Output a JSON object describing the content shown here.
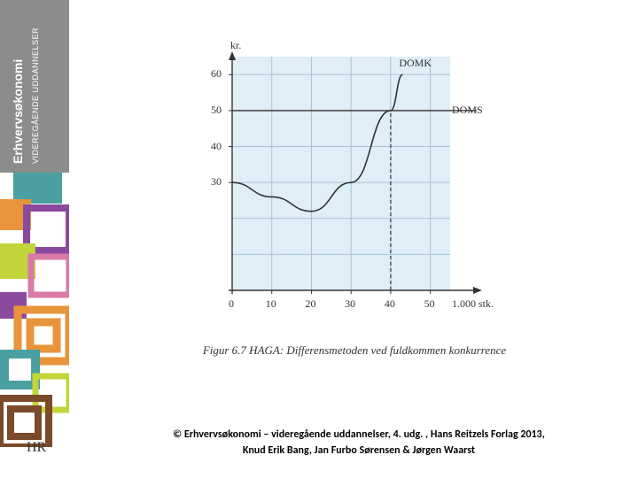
{
  "sidebar": {
    "title": "Erhvervsøkonomi",
    "subtitle": "VIDEREGÅENDE UDDANNELSER",
    "logo": "HR",
    "bg_color": "#8c8c8c",
    "text_color": "#ffffff",
    "deco_colors": {
      "purple": "#8c4a9e",
      "teal": "#4aa0a0",
      "orange": "#e8943a",
      "lime": "#c2d43a",
      "pink": "#d97aa8",
      "brown": "#7a4a2a",
      "white": "#ffffff"
    }
  },
  "chart": {
    "type": "line",
    "plot_bg": "#dfeef7",
    "grid_color": "#a8c4d4",
    "axis_color": "#333333",
    "line_color": "#333333",
    "dashed_color": "#333333",
    "y_label": "kr.",
    "x_label": "1.000 stk.",
    "xlim": [
      0,
      55
    ],
    "ylim": [
      0,
      65
    ],
    "x_ticks": [
      0,
      10,
      20,
      30,
      40,
      50
    ],
    "y_ticks": [
      30,
      40,
      50,
      60
    ],
    "curve_label_top": "DOMK",
    "curve_label_right": "DOMS",
    "line_points": [
      {
        "x": 0,
        "y": 30
      },
      {
        "x": 10,
        "y": 26
      },
      {
        "x": 20,
        "y": 22
      },
      {
        "x": 30,
        "y": 30
      },
      {
        "x": 40,
        "y": 50
      },
      {
        "x": 43,
        "y": 60
      }
    ],
    "horizontal_ref": 50,
    "vertical_ref": 40,
    "line_width": 1.6,
    "font_size_ticks": 12,
    "font_size_labels": 12
  },
  "caption": "Figur 6.7 HAGA: Differensmetoden ved fuldkommen konkurrence",
  "footer": {
    "line1": "© Erhvervsøkonomi – videregående uddannelser, 4. udg. , Hans Reitzels Forlag 2013,",
    "line2": "Knud Erik Bang, Jan Furbo Sørensen & Jørgen Waarst"
  }
}
